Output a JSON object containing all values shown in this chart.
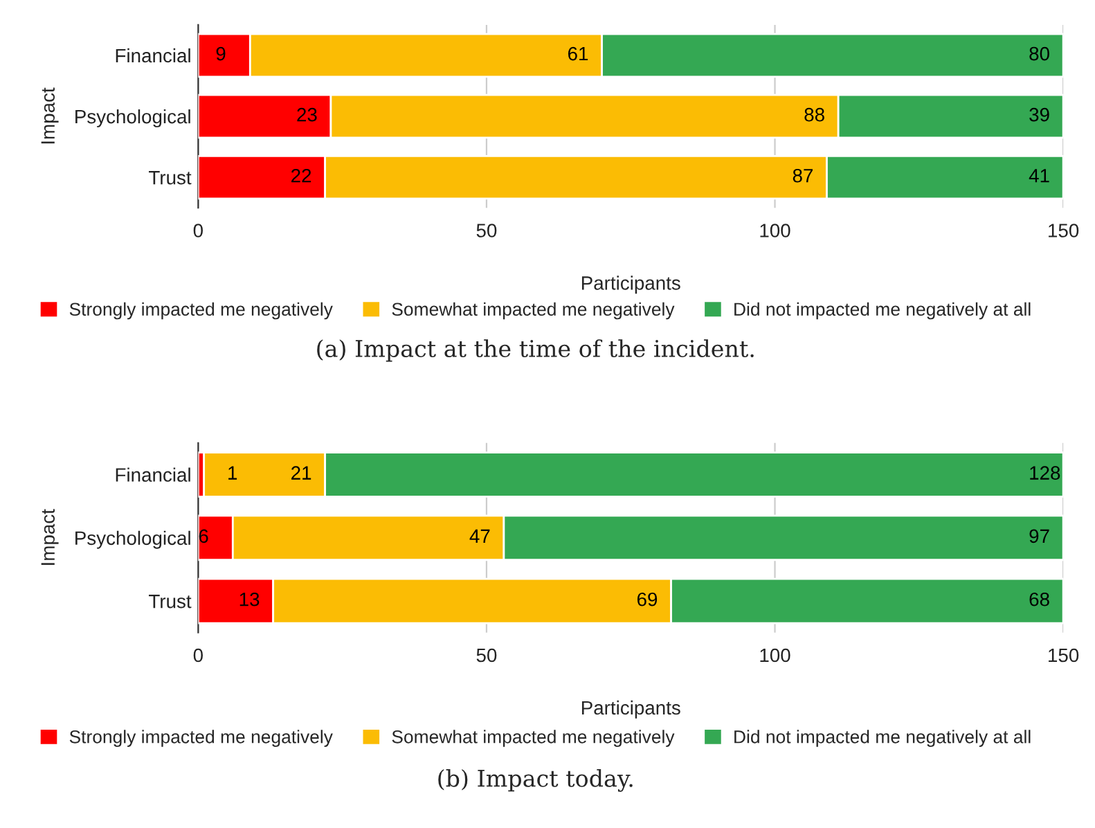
{
  "chart_data": [
    {
      "type": "bar",
      "orientation": "horizontal",
      "stacked": true,
      "categories": [
        "Financial",
        "Psychological",
        "Trust"
      ],
      "series": [
        {
          "name": "Strongly impacted me negatively",
          "color": "#ff0000",
          "values": [
            9,
            23,
            22
          ]
        },
        {
          "name": "Somewhat impacted me negatively",
          "color": "#fbbc04",
          "values": [
            61,
            88,
            87
          ]
        },
        {
          "name": "Did not impacted me negatively at all",
          "color": "#34a853",
          "values": [
            80,
            39,
            41
          ]
        }
      ],
      "xlim": [
        0,
        150
      ],
      "xticks": [
        0,
        50,
        100,
        150
      ],
      "xlabel": "Participants",
      "ylabel": "Impact",
      "grid": "x",
      "legend": "bottom",
      "data_labels": true,
      "annotations": [
        "(a) Impact at the time of the incident."
      ]
    },
    {
      "type": "bar",
      "orientation": "horizontal",
      "stacked": true,
      "categories": [
        "Financial",
        "Psychological",
        "Trust"
      ],
      "series": [
        {
          "name": "Strongly impacted me negatively",
          "color": "#ff0000",
          "values": [
            1,
            6,
            13
          ]
        },
        {
          "name": "Somewhat impacted me negatively",
          "color": "#fbbc04",
          "values": [
            21,
            47,
            69
          ]
        },
        {
          "name": "Did not impacted me negatively at all",
          "color": "#34a853",
          "values": [
            128,
            97,
            68
          ]
        }
      ],
      "xlim": [
        0,
        150
      ],
      "xticks": [
        0,
        50,
        100,
        150
      ],
      "xlabel": "Participants",
      "ylabel": "Impact",
      "grid": "x",
      "legend": "bottom",
      "data_labels": true,
      "annotations": [
        "(b) Impact today."
      ]
    }
  ]
}
